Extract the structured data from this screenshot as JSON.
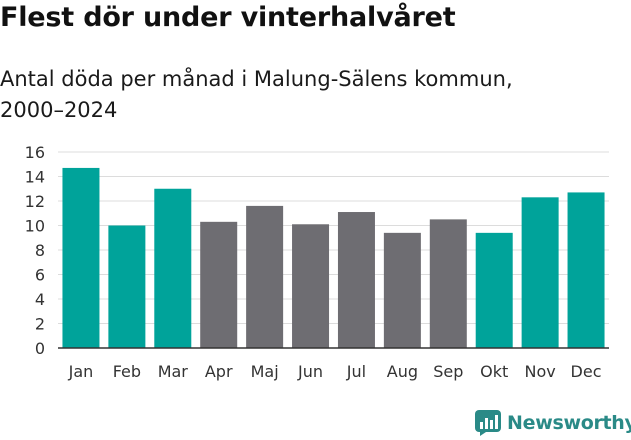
{
  "header": {
    "title": "Flest dör under vinterhalvåret",
    "subtitle": "Antal döda per månad i Malung-Sälens kommun, 2000–2024"
  },
  "brand": {
    "name": "Newsworthy",
    "icon": "newsworthy-chart-icon",
    "color": "#2a8a87"
  },
  "colors": {
    "highlight": "#00a39a",
    "normal": "#6e6d72",
    "grid": "#dcdcdc",
    "axis": "#333333"
  },
  "chart_data": {
    "type": "bar",
    "title": "Flest dör under vinterhalvåret",
    "subtitle": "Antal döda per månad i Malung-Sälens kommun, 2000–2024",
    "xlabel": "",
    "ylabel": "",
    "categories": [
      "Jan",
      "Feb",
      "Mar",
      "Apr",
      "Maj",
      "Jun",
      "Jul",
      "Aug",
      "Sep",
      "Okt",
      "Nov",
      "Dec"
    ],
    "values": [
      14.7,
      10.0,
      13.0,
      10.3,
      11.6,
      10.1,
      11.1,
      9.4,
      10.5,
      9.4,
      12.3,
      12.7
    ],
    "highlighted": [
      true,
      true,
      true,
      false,
      false,
      false,
      false,
      false,
      false,
      true,
      true,
      true
    ],
    "ylim": [
      0,
      16
    ],
    "yticks": [
      0,
      2,
      4,
      6,
      8,
      10,
      12,
      14,
      16
    ],
    "grid": true,
    "legend": "none"
  }
}
